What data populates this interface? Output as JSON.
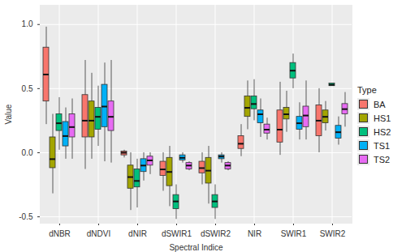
{
  "chart_data": {
    "type": "boxplot",
    "x_label": "Spectral Indice",
    "y_label": "Value",
    "legend_title": "Type",
    "legend": "right",
    "grid": true,
    "ylim": [
      -0.55,
      1.15
    ],
    "yticks": [
      {
        "value": -0.5,
        "label": "-0.5"
      },
      {
        "value": 0,
        "label": "0.0"
      },
      {
        "value": 0.5,
        "label": "0.5"
      },
      {
        "value": 1,
        "label": "1.0"
      }
    ],
    "categories": [
      "dNBR",
      "dNDVI",
      "dNIR",
      "dSWIR1",
      "dSWIR2",
      "NIR",
      "SWIR1",
      "SWIR2"
    ],
    "series": [
      {
        "name": "BA",
        "color": "#F8766D",
        "values": [
          {
            "min": 0.22,
            "q1": 0.4,
            "median": 0.61,
            "q3": 0.82,
            "max": 0.98
          },
          {
            "min": -0.13,
            "q1": 0.12,
            "median": 0.25,
            "q3": 0.45,
            "max": 0.72
          },
          {
            "min": -0.04,
            "q1": -0.02,
            "median": 0.0,
            "q3": 0.01,
            "max": 0.02
          },
          {
            "min": -0.3,
            "q1": -0.18,
            "median": -0.13,
            "q3": -0.07,
            "max": 0.0
          },
          {
            "min": -0.25,
            "q1": -0.16,
            "median": -0.12,
            "q3": -0.07,
            "max": 0.0
          },
          {
            "min": -0.03,
            "q1": 0.03,
            "median": 0.07,
            "q3": 0.13,
            "max": 0.22
          },
          {
            "min": -0.02,
            "q1": 0.08,
            "median": 0.18,
            "q3": 0.33,
            "max": 0.55
          },
          {
            "min": 0.0,
            "q1": 0.13,
            "median": 0.25,
            "q3": 0.37,
            "max": 0.5
          }
        ]
      },
      {
        "name": "HS1",
        "color": "#A3A500",
        "values": [
          {
            "min": -0.32,
            "q1": -0.12,
            "median": -0.05,
            "q3": 0.12,
            "max": 0.3
          },
          {
            "min": -0.05,
            "q1": 0.12,
            "median": 0.25,
            "q3": 0.4,
            "max": 0.62
          },
          {
            "min": -0.45,
            "q1": -0.28,
            "median": -0.19,
            "q3": -0.1,
            "max": 0.0
          },
          {
            "min": -0.42,
            "q1": -0.26,
            "median": -0.15,
            "q3": -0.04,
            "max": 0.05
          },
          {
            "min": -0.4,
            "q1": -0.24,
            "median": -0.14,
            "q3": -0.04,
            "max": 0.05
          },
          {
            "min": 0.18,
            "q1": 0.28,
            "median": 0.35,
            "q3": 0.44,
            "max": 0.56
          },
          {
            "min": 0.16,
            "q1": 0.26,
            "median": 0.3,
            "q3": 0.35,
            "max": 0.48
          },
          {
            "min": 0.17,
            "q1": 0.23,
            "median": 0.28,
            "q3": 0.33,
            "max": 0.4
          }
        ]
      },
      {
        "name": "HS2",
        "color": "#00BF7D",
        "values": [
          {
            "min": 0.02,
            "q1": 0.17,
            "median": 0.23,
            "q3": 0.3,
            "max": 0.43
          },
          {
            "min": 0.05,
            "q1": 0.18,
            "median": 0.28,
            "q3": 0.35,
            "max": 0.52
          },
          {
            "min": -0.43,
            "q1": -0.27,
            "median": -0.22,
            "q3": -0.13,
            "max": -0.05
          },
          {
            "min": -0.52,
            "q1": -0.44,
            "median": -0.38,
            "q3": -0.33,
            "max": -0.25
          },
          {
            "min": -0.52,
            "q1": -0.43,
            "median": -0.38,
            "q3": -0.33,
            "max": -0.25
          },
          {
            "min": 0.25,
            "q1": 0.34,
            "median": 0.38,
            "q3": 0.44,
            "max": 0.57
          },
          {
            "min": 0.5,
            "q1": 0.58,
            "median": 0.64,
            "q3": 0.7,
            "max": 0.77
          },
          {
            "min": 0.52,
            "q1": 0.52,
            "median": 0.53,
            "q3": 0.54,
            "max": 0.54
          }
        ]
      },
      {
        "name": "TS1",
        "color": "#00B0F6",
        "values": [
          {
            "min": -0.05,
            "q1": 0.05,
            "median": 0.13,
            "q3": 0.24,
            "max": 0.35
          },
          {
            "min": -0.07,
            "q1": 0.2,
            "median": 0.36,
            "q3": 0.53,
            "max": 0.7
          },
          {
            "min": -0.22,
            "q1": -0.15,
            "median": -0.1,
            "q3": -0.05,
            "max": 0.0
          },
          {
            "min": -0.08,
            "q1": -0.06,
            "median": -0.04,
            "q3": -0.02,
            "max": 0.0
          },
          {
            "min": -0.08,
            "q1": -0.05,
            "median": -0.03,
            "q3": -0.02,
            "max": 0.0
          },
          {
            "min": 0.12,
            "q1": 0.23,
            "median": 0.3,
            "q3": 0.33,
            "max": 0.42
          },
          {
            "min": 0.1,
            "q1": 0.18,
            "median": 0.23,
            "q3": 0.28,
            "max": 0.39
          },
          {
            "min": 0.06,
            "q1": 0.11,
            "median": 0.16,
            "q3": 0.21,
            "max": 0.28
          }
        ]
      },
      {
        "name": "TS2",
        "color": "#E76BF3",
        "values": [
          {
            "min": -0.05,
            "q1": 0.12,
            "median": 0.2,
            "q3": 0.3,
            "max": 0.42
          },
          {
            "min": -0.08,
            "q1": 0.17,
            "median": 0.28,
            "q3": 0.4,
            "max": 0.72
          },
          {
            "min": -0.17,
            "q1": -0.1,
            "median": -0.06,
            "q3": -0.03,
            "max": 0.0
          },
          {
            "min": -0.14,
            "q1": -0.13,
            "median": -0.1,
            "q3": -0.08,
            "max": -0.07
          },
          {
            "min": -0.14,
            "q1": -0.13,
            "median": -0.1,
            "q3": -0.08,
            "max": -0.07
          },
          {
            "min": 0.1,
            "q1": 0.15,
            "median": 0.18,
            "q3": 0.22,
            "max": 0.27
          },
          {
            "min": 0.1,
            "q1": 0.2,
            "median": 0.29,
            "q3": 0.36,
            "max": 0.56
          },
          {
            "min": 0.2,
            "q1": 0.3,
            "median": 0.34,
            "q3": 0.38,
            "max": 0.47
          }
        ]
      }
    ]
  }
}
